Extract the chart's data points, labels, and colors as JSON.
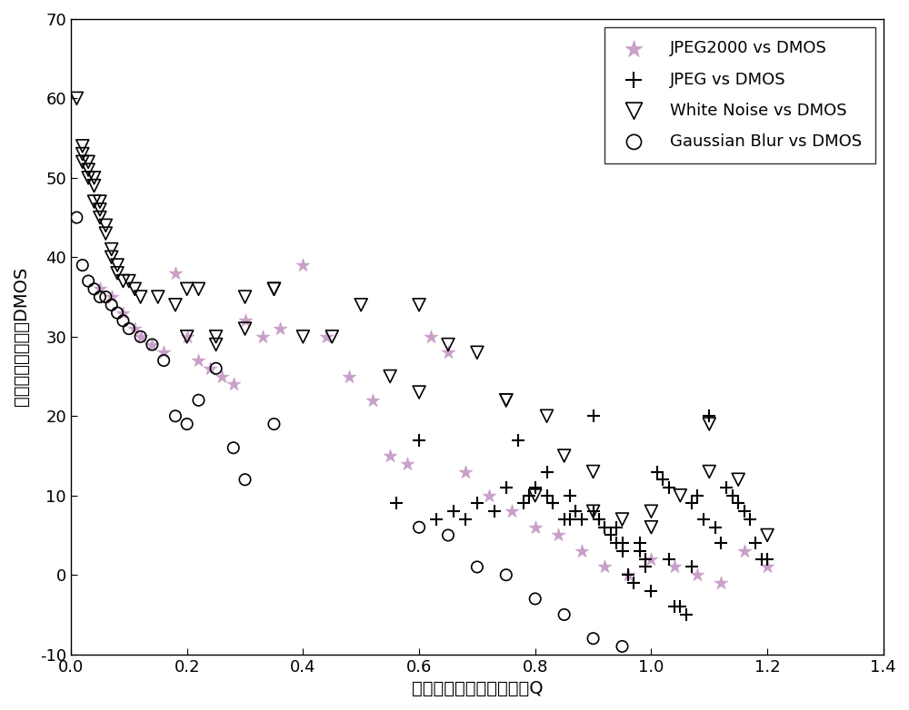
{
  "xlabel": "客观图像质量评价预测值Q",
  "ylabel": "平均主观评分差値DMOS",
  "xlim": [
    0,
    1.4
  ],
  "ylim": [
    -10,
    70
  ],
  "xticks": [
    0,
    0.2,
    0.4,
    0.6,
    0.8,
    1.0,
    1.2,
    1.4
  ],
  "yticks": [
    -10,
    0,
    10,
    20,
    30,
    40,
    50,
    60,
    70
  ],
  "jpeg2000_x": [
    0.05,
    0.07,
    0.09,
    0.11,
    0.12,
    0.14,
    0.16,
    0.18,
    0.2,
    0.22,
    0.24,
    0.26,
    0.28,
    0.3,
    0.33,
    0.36,
    0.4,
    0.44,
    0.48,
    0.52,
    0.55,
    0.58,
    0.62,
    0.65,
    0.68,
    0.72,
    0.76,
    0.8,
    0.84,
    0.88,
    0.92,
    0.96,
    1.0,
    1.04,
    1.08,
    1.12,
    1.16,
    1.2
  ],
  "jpeg2000_y": [
    36,
    35,
    33,
    31,
    30,
    29,
    28,
    38,
    30,
    27,
    26,
    25,
    24,
    32,
    30,
    31,
    39,
    30,
    25,
    22,
    15,
    14,
    30,
    28,
    13,
    10,
    8,
    6,
    5,
    3,
    1,
    0,
    2,
    1,
    0,
    -1,
    3,
    1
  ],
  "jpeg_x": [
    0.56,
    0.6,
    0.63,
    0.66,
    0.68,
    0.7,
    0.73,
    0.75,
    0.77,
    0.79,
    0.8,
    0.82,
    0.83,
    0.85,
    0.86,
    0.87,
    0.88,
    0.9,
    0.91,
    0.92,
    0.93,
    0.94,
    0.95,
    0.96,
    0.97,
    0.98,
    0.99,
    1.0,
    1.01,
    1.02,
    1.03,
    1.04,
    1.05,
    1.06,
    1.07,
    1.08,
    1.09,
    1.1,
    1.11,
    1.12,
    1.13,
    1.14,
    1.15,
    1.16,
    1.17,
    1.18,
    1.19,
    1.2,
    0.78,
    0.82,
    0.86,
    0.9,
    0.94,
    0.98,
    0.75,
    0.79,
    0.83,
    0.87,
    0.91,
    0.95,
    0.99,
    1.03,
    1.07
  ],
  "jpeg_y": [
    9,
    17,
    7,
    8,
    7,
    9,
    8,
    11,
    17,
    10,
    11,
    13,
    9,
    7,
    10,
    8,
    7,
    8,
    7,
    6,
    5,
    4,
    3,
    0,
    -1,
    3,
    1,
    -2,
    13,
    12,
    11,
    -4,
    -4,
    -5,
    9,
    10,
    7,
    20,
    6,
    4,
    11,
    10,
    9,
    8,
    7,
    4,
    2,
    2,
    9,
    10,
    7,
    20,
    6,
    4,
    11,
    10,
    9,
    8,
    7,
    4,
    2,
    2,
    1
  ],
  "whitenoise_x": [
    0.01,
    0.02,
    0.02,
    0.02,
    0.03,
    0.03,
    0.03,
    0.04,
    0.04,
    0.04,
    0.05,
    0.05,
    0.05,
    0.06,
    0.06,
    0.07,
    0.07,
    0.08,
    0.08,
    0.09,
    0.1,
    0.11,
    0.12,
    0.15,
    0.18,
    0.2,
    0.22,
    0.25,
    0.3,
    0.35,
    0.4,
    0.45,
    0.5,
    0.55,
    0.6,
    0.65,
    0.7,
    0.75,
    0.8,
    0.85,
    0.9,
    0.95,
    1.0,
    1.05,
    1.1,
    1.15,
    1.2,
    0.2,
    0.25,
    0.3,
    0.35,
    0.6,
    0.75,
    0.82,
    0.9,
    1.0,
    1.1
  ],
  "whitenoise_y": [
    60,
    54,
    53,
    52,
    52,
    51,
    50,
    50,
    49,
    47,
    47,
    46,
    45,
    44,
    43,
    41,
    40,
    39,
    38,
    37,
    37,
    36,
    35,
    35,
    34,
    36,
    36,
    30,
    35,
    36,
    30,
    30,
    34,
    25,
    23,
    29,
    28,
    22,
    10,
    15,
    8,
    7,
    8,
    10,
    13,
    12,
    5,
    30,
    29,
    31,
    36,
    34,
    22,
    20,
    13,
    6,
    19
  ],
  "gaussianblur_x": [
    0.01,
    0.02,
    0.03,
    0.04,
    0.05,
    0.06,
    0.07,
    0.08,
    0.09,
    0.1,
    0.12,
    0.14,
    0.16,
    0.18,
    0.2,
    0.22,
    0.25,
    0.28,
    0.3,
    0.35,
    0.6,
    0.65,
    0.7,
    0.75,
    0.8,
    0.85,
    0.9,
    0.95
  ],
  "gaussianblur_y": [
    45,
    39,
    37,
    36,
    35,
    35,
    34,
    33,
    32,
    31,
    30,
    29,
    27,
    20,
    19,
    22,
    26,
    16,
    12,
    19,
    6,
    5,
    1,
    0,
    -3,
    -5,
    -8,
    -9
  ],
  "jpeg2000_color": "#c8a0c8",
  "jpeg_color": "#000000",
  "whitenoise_color": "#000000",
  "gaussianblur_color": "#000000"
}
